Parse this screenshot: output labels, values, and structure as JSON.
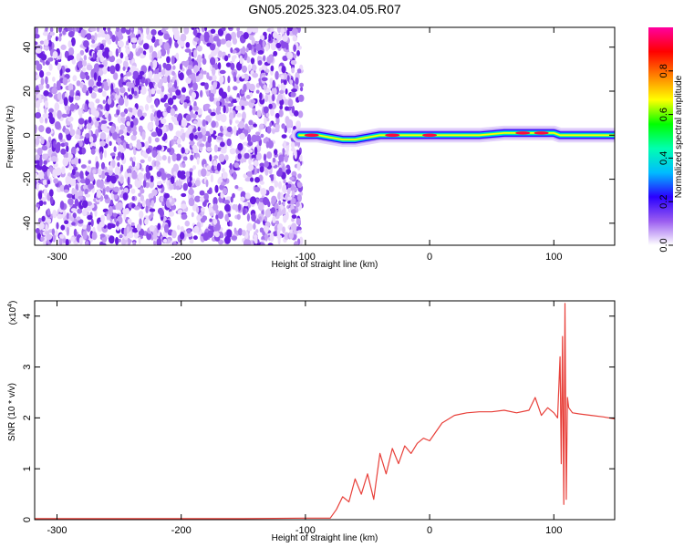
{
  "figure": {
    "title": "GN05.2025.323.04.05.R07"
  },
  "chart_data": [
    {
      "type": "heatmap",
      "xlabel": "Height of straight line (km)",
      "ylabel": "Frequency (Hz)",
      "xlim": [
        -318,
        149
      ],
      "ylim": [
        -50,
        49
      ],
      "xticks": [
        -300,
        -200,
        -100,
        0,
        100
      ],
      "yticks": [
        -40,
        -20,
        0,
        20,
        40
      ],
      "noise_region": {
        "x": [
          -318,
          -100
        ],
        "frequency": [
          -50,
          49
        ]
      },
      "signal_ridge": {
        "x": [
          -105,
          -90,
          -80,
          -70,
          -60,
          -50,
          -40,
          -30,
          -20,
          -10,
          0,
          10,
          20,
          40,
          60,
          80,
          90,
          100,
          105,
          110,
          120,
          149
        ],
        "frequency": [
          0,
          0,
          -1,
          -2,
          -2,
          -1,
          0,
          0,
          0,
          0,
          0,
          0,
          0,
          0,
          1,
          1,
          1,
          1,
          0,
          0,
          0,
          0
        ]
      },
      "colorbar": {
        "label": "Normalized spectral amplitude",
        "range": [
          0,
          1
        ],
        "ticks": [
          "0.0",
          "0.2",
          "0.4",
          "0.6",
          "0.8"
        ],
        "tick_values": [
          0,
          0.2,
          0.4,
          0.6,
          0.8
        ],
        "colors": [
          "#ffffff",
          "#9a5cf0",
          "#2a00ff",
          "#00bcff",
          "#00ffb0",
          "#00ff00",
          "#ffff00",
          "#ff8000",
          "#ff0000",
          "#ff00a0"
        ]
      },
      "grid": false
    },
    {
      "type": "line",
      "xlabel": "Height of straight line (km)",
      "ylabel": "SNR (10 * v/v)",
      "multiplier": "(x10",
      "multiplier_exp": "4",
      "multiplier_close": ")",
      "xlim": [
        -318,
        149
      ],
      "ylim": [
        0,
        4.3
      ],
      "xticks": [
        -300,
        -200,
        -100,
        0,
        100
      ],
      "yticks": [
        0,
        1,
        2,
        3,
        4
      ],
      "series": [
        {
          "color": "#e8403a",
          "x": [
            -318,
            -250,
            -150,
            -100,
            -80,
            -75,
            -70,
            -65,
            -60,
            -55,
            -50,
            -45,
            -40,
            -35,
            -30,
            -25,
            -20,
            -15,
            -10,
            -5,
            0,
            10,
            20,
            30,
            40,
            50,
            60,
            70,
            80,
            85,
            90,
            95,
            100,
            103,
            105,
            106,
            107,
            108,
            109,
            110,
            111,
            112,
            115,
            120,
            130,
            140,
            149
          ],
          "y": [
            0.02,
            0.02,
            0.02,
            0.03,
            0.03,
            0.2,
            0.45,
            0.35,
            0.8,
            0.5,
            0.9,
            0.4,
            1.3,
            0.9,
            1.4,
            1.1,
            1.45,
            1.3,
            1.5,
            1.6,
            1.55,
            1.9,
            2.05,
            2.1,
            2.12,
            2.12,
            2.15,
            2.1,
            2.15,
            2.4,
            2.05,
            2.2,
            2.1,
            2.0,
            3.2,
            1.1,
            3.6,
            0.3,
            4.25,
            0.4,
            2.4,
            2.2,
            2.1,
            2.08,
            2.05,
            2.02,
            1.98
          ]
        }
      ],
      "grid": false
    }
  ]
}
